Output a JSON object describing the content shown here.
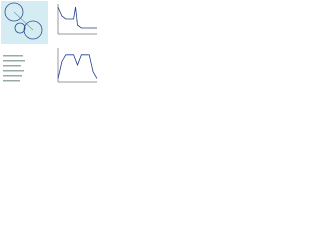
{
  "chart_data": [
    {
      "type": "line",
      "x": [
        0,
        1,
        2,
        3,
        4,
        4.5,
        5,
        6,
        8,
        10
      ],
      "values": [
        9,
        6,
        5,
        5,
        5,
        9,
        3,
        2,
        2,
        2
      ],
      "xlim": [
        0,
        10
      ],
      "ylim": [
        0,
        10
      ],
      "color": "#1f3f8f"
    },
    {
      "type": "line",
      "x": [
        0,
        1,
        2,
        4,
        5,
        6,
        7,
        8,
        9,
        10
      ],
      "values": [
        1,
        6,
        8,
        8,
        5,
        8,
        8,
        8,
        3,
        1
      ],
      "xlim": [
        0,
        10
      ],
      "ylim": [
        0,
        10
      ],
      "color": "#1f3f8f"
    }
  ]
}
